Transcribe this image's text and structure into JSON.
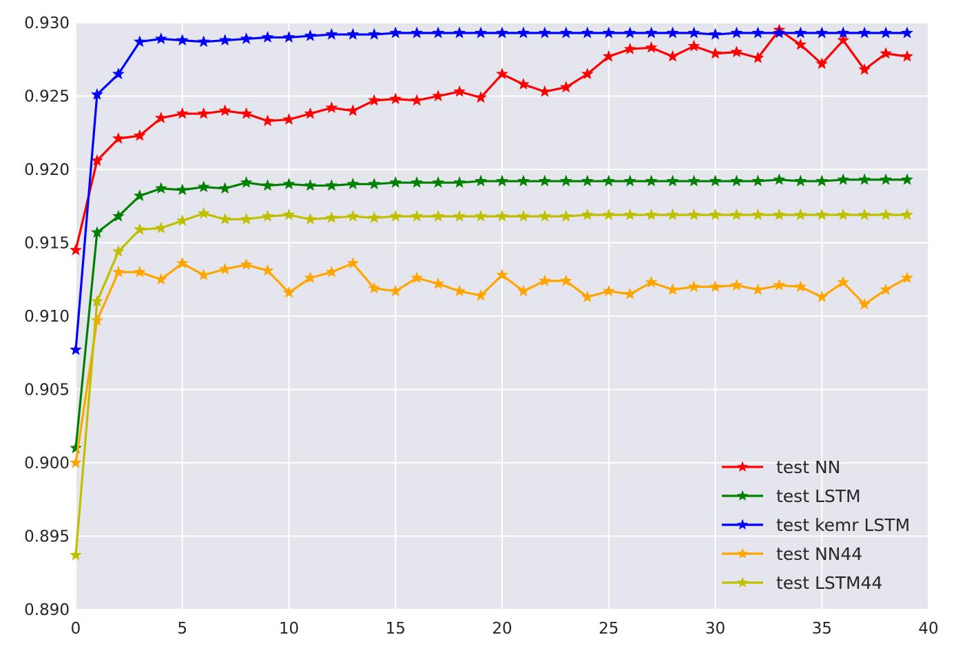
{
  "chart_data": {
    "type": "line",
    "title": "",
    "xlabel": "",
    "ylabel": "",
    "xlim": [
      0,
      40
    ],
    "ylim": [
      0.89,
      0.93
    ],
    "xticks": [
      0,
      5,
      10,
      15,
      20,
      25,
      30,
      35,
      40
    ],
    "xtick_labels": [
      "0",
      "5",
      "10",
      "15",
      "20",
      "25",
      "30",
      "35",
      "40"
    ],
    "yticks": [
      0.89,
      0.895,
      0.9,
      0.905,
      0.91,
      0.915,
      0.92,
      0.925,
      0.93
    ],
    "ytick_labels": [
      "0.890",
      "0.895",
      "0.900",
      "0.905",
      "0.910",
      "0.915",
      "0.920",
      "0.925",
      "0.930"
    ],
    "grid": true,
    "background": "#e5e5ee",
    "grid_color": "#ffffff",
    "marker": "star",
    "legend_position": "lower-right",
    "x": [
      0,
      1,
      2,
      3,
      4,
      5,
      6,
      7,
      8,
      9,
      10,
      11,
      12,
      13,
      14,
      15,
      16,
      17,
      18,
      19,
      20,
      21,
      22,
      23,
      24,
      25,
      26,
      27,
      28,
      29,
      30,
      31,
      32,
      33,
      34,
      35,
      36,
      37,
      38,
      39
    ],
    "series": [
      {
        "name": "test NN",
        "color": "#ff0000",
        "values": [
          0.9145,
          0.9206,
          0.9221,
          0.9223,
          0.9235,
          0.9238,
          0.9238,
          0.924,
          0.9238,
          0.9233,
          0.9234,
          0.9238,
          0.9242,
          0.924,
          0.9247,
          0.9248,
          0.9247,
          0.925,
          0.9253,
          0.9249,
          0.9265,
          0.9258,
          0.9253,
          0.9256,
          0.9265,
          0.9277,
          0.9282,
          0.9283,
          0.9277,
          0.9284,
          0.9279,
          0.928,
          0.9276,
          0.9295,
          0.9285,
          0.9272,
          0.9288,
          0.9268,
          0.9279,
          0.9277
        ]
      },
      {
        "name": "test LSTM",
        "color": "#008000",
        "values": [
          0.901,
          0.9157,
          0.9168,
          0.9182,
          0.9187,
          0.9186,
          0.9188,
          0.9187,
          0.9191,
          0.9189,
          0.919,
          0.9189,
          0.9189,
          0.919,
          0.919,
          0.9191,
          0.9191,
          0.9191,
          0.9191,
          0.9192,
          0.9192,
          0.9192,
          0.9192,
          0.9192,
          0.9192,
          0.9192,
          0.9192,
          0.9192,
          0.9192,
          0.9192,
          0.9192,
          0.9192,
          0.9192,
          0.9193,
          0.9192,
          0.9192,
          0.9193,
          0.9193,
          0.9193,
          0.9193
        ]
      },
      {
        "name": "test kemr LSTM",
        "color": "#0000ff",
        "values": [
          0.9077,
          0.9251,
          0.9265,
          0.9287,
          0.9289,
          0.9288,
          0.9287,
          0.9288,
          0.9289,
          0.929,
          0.929,
          0.9291,
          0.9292,
          0.9292,
          0.9292,
          0.9293,
          0.9293,
          0.9293,
          0.9293,
          0.9293,
          0.9293,
          0.9293,
          0.9293,
          0.9293,
          0.9293,
          0.9293,
          0.9293,
          0.9293,
          0.9293,
          0.9293,
          0.9292,
          0.9293,
          0.9293,
          0.9293,
          0.9293,
          0.9293,
          0.9293,
          0.9293,
          0.9293,
          0.9293
        ]
      },
      {
        "name": "test NN44",
        "color": "#ffa500",
        "values": [
          0.9,
          0.9097,
          0.913,
          0.913,
          0.9125,
          0.9136,
          0.9128,
          0.9132,
          0.9135,
          0.9131,
          0.9116,
          0.9126,
          0.913,
          0.9136,
          0.9119,
          0.9117,
          0.9126,
          0.9122,
          0.9117,
          0.9114,
          0.9128,
          0.9117,
          0.9124,
          0.9124,
          0.9113,
          0.9117,
          0.9115,
          0.9123,
          0.9118,
          0.912,
          0.912,
          0.9121,
          0.9118,
          0.9121,
          0.912,
          0.9113,
          0.9123,
          0.9108,
          0.9118,
          0.9126
        ]
      },
      {
        "name": "test LSTM44",
        "color": "#bfbf00",
        "values": [
          0.8937,
          0.911,
          0.9144,
          0.9159,
          0.916,
          0.9165,
          0.917,
          0.9166,
          0.9166,
          0.9168,
          0.9169,
          0.9166,
          0.9167,
          0.9168,
          0.9167,
          0.9168,
          0.9168,
          0.9168,
          0.9168,
          0.9168,
          0.9168,
          0.9168,
          0.9168,
          0.9168,
          0.9169,
          0.9169,
          0.9169,
          0.9169,
          0.9169,
          0.9169,
          0.9169,
          0.9169,
          0.9169,
          0.9169,
          0.9169,
          0.9169,
          0.9169,
          0.9169,
          0.9169,
          0.9169
        ]
      }
    ]
  }
}
